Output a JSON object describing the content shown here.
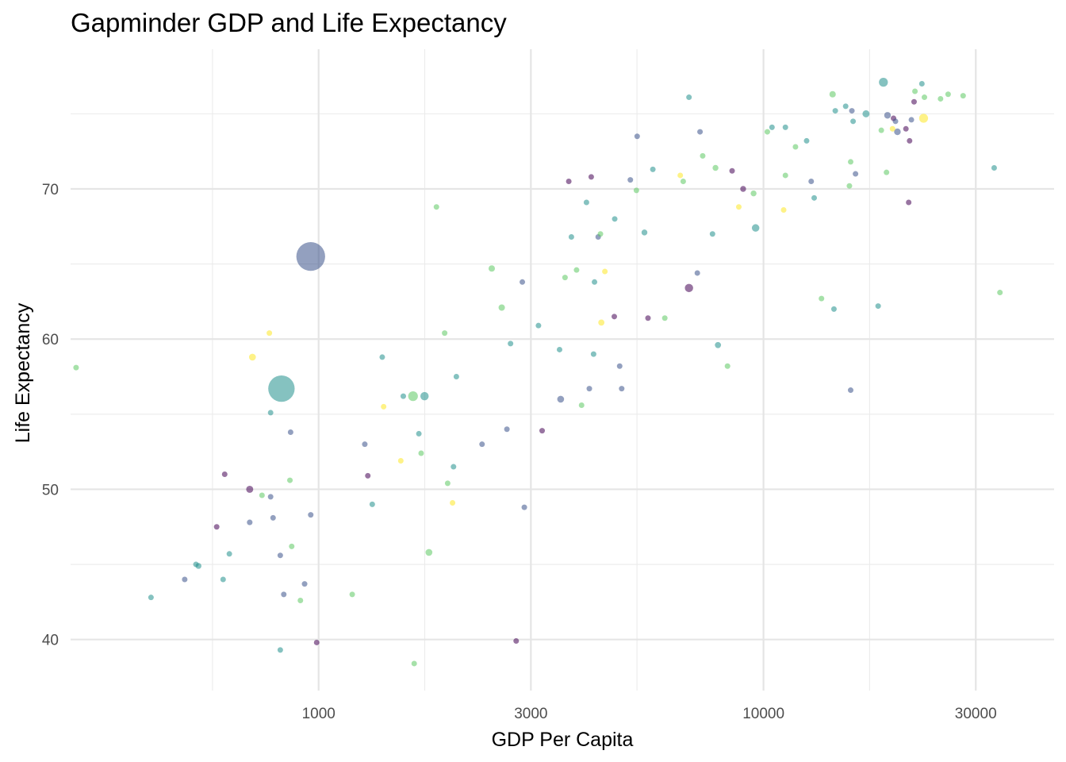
{
  "chart_data": {
    "type": "scatter",
    "title": "Gapminder GDP and Life Expectancy",
    "xlabel": "GDP Per Capita",
    "ylabel": "Life Expectancy",
    "x_scale": "log10",
    "xlim": [
      277,
      45000
    ],
    "ylim": [
      36.6,
      79.3
    ],
    "x_ticks": [
      1000,
      3000,
      10000,
      30000
    ],
    "x_tick_labels": [
      "1000",
      "3000",
      "10000",
      "30000"
    ],
    "y_ticks": [
      40,
      50,
      60,
      70
    ],
    "y_tick_labels": [
      "40",
      "50",
      "60",
      "70"
    ],
    "grid": true,
    "legend": "none",
    "colors": {
      "purple": "#440154",
      "indigo": "#3b528b",
      "teal": "#21908c",
      "green": "#5dc863",
      "yellow": "#fde725"
    },
    "points": [
      {
        "x": 960,
        "y": 65.5,
        "size": 1318,
        "color": "indigo"
      },
      {
        "x": 825,
        "y": 56.7,
        "size": 1110,
        "color": "teal"
      },
      {
        "x": 22900,
        "y": 74.7,
        "size": 127,
        "color": "yellow"
      },
      {
        "x": 18600,
        "y": 77.1,
        "size": 127,
        "color": "teal"
      },
      {
        "x": 6800,
        "y": 63.4,
        "size": 109,
        "color": "purple"
      },
      {
        "x": 1630,
        "y": 56.2,
        "size": 150,
        "color": "green"
      },
      {
        "x": 1730,
        "y": 56.2,
        "size": 110,
        "color": "teal"
      },
      {
        "x": 3500,
        "y": 56.0,
        "size": 75,
        "color": "indigo"
      },
      {
        "x": 1770,
        "y": 45.8,
        "size": 75,
        "color": "green"
      },
      {
        "x": 9600,
        "y": 67.4,
        "size": 90,
        "color": "teal"
      },
      {
        "x": 17000,
        "y": 75.0,
        "size": 80,
        "color": "teal"
      },
      {
        "x": 19000,
        "y": 74.9,
        "size": 70,
        "color": "indigo"
      },
      {
        "x": 20000,
        "y": 73.8,
        "size": 70,
        "color": "indigo"
      },
      {
        "x": 14300,
        "y": 76.3,
        "size": 65,
        "color": "green"
      },
      {
        "x": 6800,
        "y": 76.1,
        "size": 40,
        "color": "teal"
      },
      {
        "x": 700,
        "y": 50.0,
        "size": 80,
        "color": "purple"
      },
      {
        "x": 710,
        "y": 58.8,
        "size": 75,
        "color": "yellow"
      },
      {
        "x": 2580,
        "y": 62.1,
        "size": 65,
        "color": "green"
      },
      {
        "x": 2450,
        "y": 64.7,
        "size": 65,
        "color": "green"
      },
      {
        "x": 4320,
        "y": 61.1,
        "size": 60,
        "color": "yellow"
      },
      {
        "x": 7900,
        "y": 59.6,
        "size": 60,
        "color": "teal"
      },
      {
        "x": 7800,
        "y": 71.4,
        "size": 55,
        "color": "green"
      },
      {
        "x": 9500,
        "y": 69.7,
        "size": 55,
        "color": "green"
      },
      {
        "x": 9000,
        "y": 70.0,
        "size": 55,
        "color": "purple"
      },
      {
        "x": 8300,
        "y": 58.2,
        "size": 50,
        "color": "green"
      },
      {
        "x": 5400,
        "y": 67.1,
        "size": 55,
        "color": "teal"
      },
      {
        "x": 19500,
        "y": 74.0,
        "size": 50,
        "color": "yellow"
      },
      {
        "x": 2700,
        "y": 59.7,
        "size": 50,
        "color": "teal"
      },
      {
        "x": 1390,
        "y": 58.8,
        "size": 45,
        "color": "teal"
      },
      {
        "x": 285,
        "y": 58.1,
        "size": 45,
        "color": "green"
      },
      {
        "x": 10450,
        "y": 74.1,
        "size": 30,
        "color": "teal"
      },
      {
        "x": 700,
        "y": 47.8,
        "size": 50,
        "color": "indigo"
      },
      {
        "x": 537,
        "y": 44.9,
        "size": 55,
        "color": "teal"
      },
      {
        "x": 746,
        "y": 49.6,
        "size": 45,
        "color": "green"
      },
      {
        "x": 865,
        "y": 53.8,
        "size": 40,
        "color": "indigo"
      },
      {
        "x": 862,
        "y": 50.6,
        "size": 45,
        "color": "green"
      },
      {
        "x": 6000,
        "y": 61.4,
        "size": 45,
        "color": "green"
      },
      {
        "x": 5500,
        "y": 61.4,
        "size": 45,
        "color": "purple"
      },
      {
        "x": 4250,
        "y": 66.8,
        "size": 45,
        "color": "indigo"
      },
      {
        "x": 4000,
        "y": 69.1,
        "size": 45,
        "color": "teal"
      },
      {
        "x": 4630,
        "y": 68.0,
        "size": 40,
        "color": "teal"
      },
      {
        "x": 13000,
        "y": 69.4,
        "size": 40,
        "color": "teal"
      },
      {
        "x": 14500,
        "y": 75.2,
        "size": 40,
        "color": "teal"
      },
      {
        "x": 21800,
        "y": 75.8,
        "size": 45,
        "color": "purple"
      },
      {
        "x": 19600,
        "y": 74.7,
        "size": 45,
        "color": "purple"
      },
      {
        "x": 20900,
        "y": 74.0,
        "size": 35,
        "color": "purple"
      },
      {
        "x": 25000,
        "y": 76.0,
        "size": 40,
        "color": "green"
      },
      {
        "x": 23000,
        "y": 76.1,
        "size": 40,
        "color": "green"
      },
      {
        "x": 26000,
        "y": 76.3,
        "size": 40,
        "color": "green"
      },
      {
        "x": 34000,
        "y": 63.1,
        "size": 40,
        "color": "green"
      },
      {
        "x": 1840,
        "y": 68.8,
        "size": 40,
        "color": "green"
      },
      {
        "x": 1950,
        "y": 50.4,
        "size": 45,
        "color": "green"
      },
      {
        "x": 2000,
        "y": 49.1,
        "size": 35,
        "color": "yellow"
      },
      {
        "x": 2330,
        "y": 53.0,
        "size": 40,
        "color": "indigo"
      },
      {
        "x": 2780,
        "y": 39.9,
        "size": 40,
        "color": "purple"
      },
      {
        "x": 3180,
        "y": 53.9,
        "size": 35,
        "color": "purple"
      },
      {
        "x": 2650,
        "y": 54.0,
        "size": 40,
        "color": "indigo"
      },
      {
        "x": 2010,
        "y": 51.5,
        "size": 35,
        "color": "teal"
      },
      {
        "x": 1320,
        "y": 49.0,
        "size": 35,
        "color": "teal"
      },
      {
        "x": 1290,
        "y": 50.9,
        "size": 35,
        "color": "purple"
      },
      {
        "x": 1530,
        "y": 51.9,
        "size": 35,
        "color": "yellow"
      },
      {
        "x": 1700,
        "y": 52.4,
        "size": 35,
        "color": "green"
      },
      {
        "x": 990,
        "y": 39.8,
        "size": 40,
        "color": "purple"
      },
      {
        "x": 1550,
        "y": 56.2,
        "size": 20,
        "color": "teal"
      },
      {
        "x": 1640,
        "y": 38.4,
        "size": 30,
        "color": "green"
      },
      {
        "x": 1190,
        "y": 43.0,
        "size": 35,
        "color": "green"
      },
      {
        "x": 615,
        "y": 51.0,
        "size": 35,
        "color": "purple"
      },
      {
        "x": 590,
        "y": 47.5,
        "size": 35,
        "color": "purple"
      },
      {
        "x": 630,
        "y": 45.7,
        "size": 35,
        "color": "teal"
      },
      {
        "x": 530,
        "y": 45.0,
        "size": 35,
        "color": "teal"
      },
      {
        "x": 610,
        "y": 44.0,
        "size": 35,
        "color": "teal"
      },
      {
        "x": 500,
        "y": 44.0,
        "size": 30,
        "color": "indigo"
      },
      {
        "x": 420,
        "y": 42.8,
        "size": 35,
        "color": "teal"
      },
      {
        "x": 780,
        "y": 55.1,
        "size": 25,
        "color": "teal"
      },
      {
        "x": 775,
        "y": 60.4,
        "size": 35,
        "color": "yellow"
      },
      {
        "x": 780,
        "y": 49.5,
        "size": 35,
        "color": "indigo"
      },
      {
        "x": 790,
        "y": 48.1,
        "size": 35,
        "color": "indigo"
      },
      {
        "x": 820,
        "y": 45.6,
        "size": 25,
        "color": "indigo"
      },
      {
        "x": 835,
        "y": 43.0,
        "size": 35,
        "color": "indigo"
      },
      {
        "x": 870,
        "y": 46.2,
        "size": 35,
        "color": "green"
      },
      {
        "x": 910,
        "y": 42.6,
        "size": 35,
        "color": "green"
      },
      {
        "x": 930,
        "y": 43.7,
        "size": 25,
        "color": "indigo"
      },
      {
        "x": 960,
        "y": 48.3,
        "size": 30,
        "color": "indigo"
      },
      {
        "x": 820,
        "y": 39.3,
        "size": 25,
        "color": "teal"
      },
      {
        "x": 1270,
        "y": 53.0,
        "size": 25,
        "color": "indigo"
      },
      {
        "x": 1400,
        "y": 55.5,
        "size": 30,
        "color": "yellow"
      },
      {
        "x": 1680,
        "y": 53.7,
        "size": 30,
        "color": "teal"
      },
      {
        "x": 1920,
        "y": 60.4,
        "size": 20,
        "color": "green"
      },
      {
        "x": 2040,
        "y": 57.5,
        "size": 25,
        "color": "teal"
      },
      {
        "x": 2870,
        "y": 63.8,
        "size": 30,
        "color": "indigo"
      },
      {
        "x": 2900,
        "y": 48.8,
        "size": 25,
        "color": "indigo"
      },
      {
        "x": 3120,
        "y": 60.9,
        "size": 30,
        "color": "teal"
      },
      {
        "x": 3480,
        "y": 59.3,
        "size": 30,
        "color": "teal"
      },
      {
        "x": 3580,
        "y": 64.1,
        "size": 30,
        "color": "green"
      },
      {
        "x": 3650,
        "y": 70.5,
        "size": 30,
        "color": "purple"
      },
      {
        "x": 3700,
        "y": 66.8,
        "size": 25,
        "color": "teal"
      },
      {
        "x": 3800,
        "y": 64.6,
        "size": 35,
        "color": "green"
      },
      {
        "x": 3900,
        "y": 55.6,
        "size": 25,
        "color": "green"
      },
      {
        "x": 4100,
        "y": 70.8,
        "size": 30,
        "color": "purple"
      },
      {
        "x": 4150,
        "y": 59.0,
        "size": 25,
        "color": "teal"
      },
      {
        "x": 4170,
        "y": 63.8,
        "size": 25,
        "color": "teal"
      },
      {
        "x": 4060,
        "y": 56.7,
        "size": 30,
        "color": "indigo"
      },
      {
        "x": 4300,
        "y": 67.0,
        "size": 30,
        "color": "green"
      },
      {
        "x": 4400,
        "y": 64.5,
        "size": 25,
        "color": "yellow"
      },
      {
        "x": 4620,
        "y": 61.5,
        "size": 25,
        "color": "purple"
      },
      {
        "x": 4750,
        "y": 58.2,
        "size": 30,
        "color": "indigo"
      },
      {
        "x": 4800,
        "y": 56.7,
        "size": 25,
        "color": "indigo"
      },
      {
        "x": 5020,
        "y": 70.6,
        "size": 40,
        "color": "indigo"
      },
      {
        "x": 5200,
        "y": 73.5,
        "size": 25,
        "color": "indigo"
      },
      {
        "x": 5180,
        "y": 69.9,
        "size": 25,
        "color": "green"
      },
      {
        "x": 5640,
        "y": 71.3,
        "size": 25,
        "color": "teal"
      },
      {
        "x": 6500,
        "y": 70.9,
        "size": 30,
        "color": "yellow"
      },
      {
        "x": 6600,
        "y": 70.5,
        "size": 25,
        "color": "green"
      },
      {
        "x": 7100,
        "y": 64.4,
        "size": 35,
        "color": "indigo"
      },
      {
        "x": 7200,
        "y": 73.8,
        "size": 35,
        "color": "indigo"
      },
      {
        "x": 7300,
        "y": 72.2,
        "size": 40,
        "color": "green"
      },
      {
        "x": 7680,
        "y": 67.0,
        "size": 25,
        "color": "teal"
      },
      {
        "x": 8500,
        "y": 71.2,
        "size": 35,
        "color": "purple"
      },
      {
        "x": 8800,
        "y": 68.8,
        "size": 25,
        "color": "yellow"
      },
      {
        "x": 10200,
        "y": 73.8,
        "size": 25,
        "color": "green"
      },
      {
        "x": 11200,
        "y": 74.1,
        "size": 25,
        "color": "teal"
      },
      {
        "x": 11200,
        "y": 70.9,
        "size": 25,
        "color": "green"
      },
      {
        "x": 11100,
        "y": 68.6,
        "size": 40,
        "color": "yellow"
      },
      {
        "x": 11800,
        "y": 72.8,
        "size": 40,
        "color": "green"
      },
      {
        "x": 12500,
        "y": 73.2,
        "size": 30,
        "color": "teal"
      },
      {
        "x": 12800,
        "y": 70.5,
        "size": 30,
        "color": "indigo"
      },
      {
        "x": 13500,
        "y": 62.7,
        "size": 25,
        "color": "green"
      },
      {
        "x": 14400,
        "y": 62.0,
        "size": 45,
        "color": "teal"
      },
      {
        "x": 15300,
        "y": 75.5,
        "size": 35,
        "color": "teal"
      },
      {
        "x": 15800,
        "y": 75.2,
        "size": 40,
        "color": "indigo"
      },
      {
        "x": 15700,
        "y": 71.8,
        "size": 25,
        "color": "green"
      },
      {
        "x": 15600,
        "y": 70.2,
        "size": 35,
        "color": "green"
      },
      {
        "x": 15700,
        "y": 56.6,
        "size": 25,
        "color": "indigo"
      },
      {
        "x": 15900,
        "y": 74.5,
        "size": 30,
        "color": "teal"
      },
      {
        "x": 16100,
        "y": 71.0,
        "size": 35,
        "color": "indigo"
      },
      {
        "x": 18100,
        "y": 62.2,
        "size": 30,
        "color": "teal"
      },
      {
        "x": 18400,
        "y": 73.9,
        "size": 25,
        "color": "green"
      },
      {
        "x": 18900,
        "y": 71.1,
        "size": 25,
        "color": "green"
      },
      {
        "x": 19800,
        "y": 74.5,
        "size": 25,
        "color": "indigo"
      },
      {
        "x": 21200,
        "y": 69.1,
        "size": 20,
        "color": "purple"
      },
      {
        "x": 21300,
        "y": 73.2,
        "size": 35,
        "color": "purple"
      },
      {
        "x": 21500,
        "y": 74.6,
        "size": 30,
        "color": "indigo"
      },
      {
        "x": 21900,
        "y": 76.5,
        "size": 35,
        "color": "green"
      },
      {
        "x": 22700,
        "y": 77.0,
        "size": 20,
        "color": "teal"
      },
      {
        "x": 28100,
        "y": 76.2,
        "size": 35,
        "color": "green"
      },
      {
        "x": 33000,
        "y": 71.4,
        "size": 25,
        "color": "teal"
      }
    ]
  }
}
